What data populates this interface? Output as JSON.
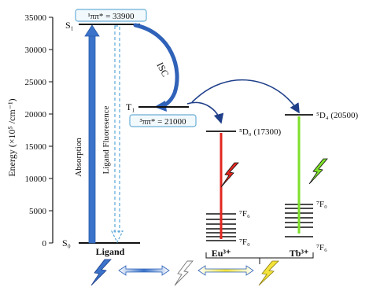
{
  "axis": {
    "ylabel": "Energy (×10⁵ /cm⁻¹)",
    "ticks": [
      "0",
      "5000",
      "10000",
      "15000",
      "20000",
      "25000",
      "30000",
      "35000"
    ]
  },
  "levels": {
    "s0": "S₀",
    "s1": "S₁",
    "t1": "T₁",
    "s1_box": "¹ππ* = 33900",
    "t1_box": "³ππ* = 21000",
    "isc": "ISC",
    "absorption": "Absorption",
    "fluorescence": "Ligand Fluoresence",
    "ligand": "Ligand"
  },
  "eu": {
    "d0": "⁵D₀ (17300)",
    "f6": "⁷F₆",
    "f0": "⁷F₀",
    "ion": "Eu³⁺",
    "emission_color": "#e3261f"
  },
  "tb": {
    "d4": "⁵D₄ (20500)",
    "f0": "⁷F₀",
    "f6": "⁷F₆",
    "ion": "Tb³⁺",
    "emission_color": "#7ee02a"
  },
  "colors": {
    "absorption": "#3a73c9",
    "fluorescence": "#5aa6d8",
    "isc_arrow": "#2f62b8",
    "transfer": "#1f3f8a",
    "box_border": "#6aaed6",
    "box_fill": "#f2f9fd"
  }
}
